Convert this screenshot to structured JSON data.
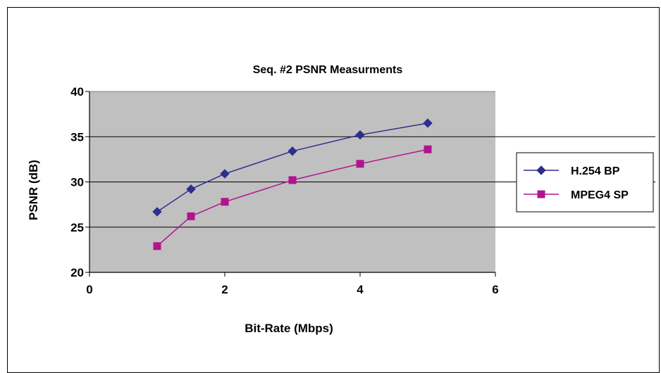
{
  "chart_data": {
    "type": "line",
    "title": "Seq. #2 PSNR Measurments",
    "xlabel": "Bit-Rate (Mbps)",
    "ylabel": "PSNR (dB)",
    "xlim": [
      0,
      6
    ],
    "ylim": [
      20,
      40
    ],
    "x_ticks": [
      "0",
      "2",
      "4",
      "6"
    ],
    "y_ticks": [
      "20",
      "25",
      "30",
      "35",
      "40"
    ],
    "grid": "horizontal",
    "legend_position": "right",
    "plot_background": "#c0c0c0",
    "series": [
      {
        "name": "H.254 BP",
        "color": "#2e2e8f",
        "marker": "diamond",
        "x": [
          1,
          1.5,
          2,
          3,
          4,
          5
        ],
        "y": [
          26.7,
          29.2,
          30.9,
          33.4,
          35.2,
          36.5
        ]
      },
      {
        "name": "MPEG4 SP",
        "color": "#b0148e",
        "marker": "square",
        "x": [
          1,
          1.5,
          2,
          3,
          4,
          5
        ],
        "y": [
          22.9,
          26.2,
          27.8,
          30.2,
          32.0,
          33.6
        ]
      }
    ]
  }
}
